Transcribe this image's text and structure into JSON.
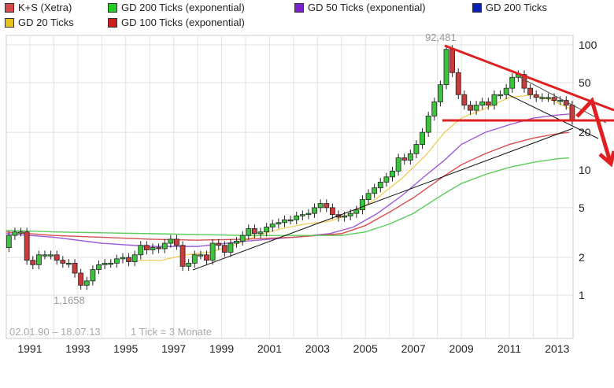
{
  "chart_data": {
    "type": "candlestick",
    "scale": "log",
    "ylim": [
      0.7,
      130
    ],
    "xlim": [
      1990.0,
      2013.65
    ],
    "grid": true,
    "legend_position": "top",
    "y_ticks": [
      "100",
      "50",
      "20",
      "10",
      "5",
      "2",
      "1"
    ],
    "y_tick_values": [
      100,
      50,
      20,
      10,
      5,
      2,
      1
    ],
    "x_ticks": [
      "1991",
      "1993",
      "1995",
      "1997",
      "1999",
      "2001",
      "2003",
      "2005",
      "2007",
      "2009",
      "2011",
      "2013"
    ],
    "legend": [
      {
        "name": "K+S (Xetra)",
        "color": "#d44b4b"
      },
      {
        "name": "GD 200 Ticks (exponential)",
        "color": "#22cc22"
      },
      {
        "name": "GD 50 Ticks (exponential)",
        "color": "#7a22cc"
      },
      {
        "name": "GD 200 Ticks",
        "color": "#0a1fb5"
      },
      {
        "name": "GD 20 Ticks",
        "color": "#e8c020"
      },
      {
        "name": "GD 100 Ticks (exponential)",
        "color": "#cc1f1f"
      }
    ],
    "period": "1 Tick = 3 Monate",
    "date_range": "02.01.90 – 18.07.13",
    "max_label": "92,481",
    "min_label": "1,1658",
    "price_quarterly_close": {
      "start": "1990 Q1",
      "values": [
        3.0,
        3.2,
        3.2,
        1.9,
        1.75,
        2.1,
        2.1,
        2.1,
        1.9,
        1.8,
        1.8,
        1.5,
        1.2,
        1.3,
        1.6,
        1.75,
        1.8,
        1.8,
        1.95,
        2.0,
        1.85,
        2.1,
        2.5,
        2.3,
        2.4,
        2.35,
        2.6,
        2.8,
        2.5,
        1.7,
        1.8,
        2.1,
        2.1,
        1.9,
        2.6,
        2.5,
        2.2,
        2.6,
        2.7,
        3.0,
        3.4,
        3.1,
        3.2,
        3.5,
        3.7,
        3.8,
        4.0,
        4.0,
        4.3,
        4.4,
        4.5,
        5.0,
        5.4,
        5.0,
        4.4,
        4.2,
        4.3,
        4.5,
        4.8,
        5.8,
        6.5,
        7.2,
        8.0,
        8.8,
        9.8,
        12.5,
        12,
        13.5,
        16,
        20,
        27,
        35,
        48,
        92,
        60,
        40,
        33,
        30,
        33,
        35,
        33,
        40,
        40,
        45,
        55,
        58,
        45,
        40,
        38,
        38,
        38,
        36,
        36,
        33,
        25
      ],
      "open_first": 2.4
    },
    "moving_averages": [
      {
        "name": "GD 20 Ticks",
        "color": "#f0d060",
        "x": [
          1995.5,
          1996.5,
          1997.5,
          1998.5,
          1999.5,
          2000.5,
          2001.5,
          2002.5,
          2003.5,
          2004.5,
          2005.5,
          2006.5,
          2007.5,
          2008.3,
          2009,
          2010,
          2011,
          2012,
          2012.8,
          2013.5
        ],
        "y": [
          1.9,
          1.9,
          2.1,
          2.2,
          2.5,
          3.0,
          3.4,
          3.7,
          3.9,
          4.5,
          6.0,
          8.5,
          13,
          20,
          26,
          31,
          38,
          40,
          36,
          31
        ]
      },
      {
        "name": "GD 50 Ticks (exponential)",
        "color": "#9b5bd6",
        "x": [
          1990,
          1992,
          1994,
          1996,
          1998,
          2000,
          2002,
          2003.5,
          2004.5,
          2005.5,
          2006.5,
          2007.5,
          2008.3,
          2009,
          2010,
          2011,
          2012,
          2013,
          2013.5
        ],
        "y": [
          3.1,
          2.9,
          2.6,
          2.45,
          2.45,
          2.7,
          2.9,
          3.1,
          3.5,
          4.5,
          6.2,
          9,
          12,
          16,
          20,
          23,
          26,
          27.5,
          28
        ]
      },
      {
        "name": "GD 100 Ticks (exponential)",
        "color": "#d85050",
        "x": [
          1990,
          1992,
          1994,
          1996,
          1998,
          2000,
          2002,
          2004,
          2005,
          2006,
          2007,
          2008.3,
          2009,
          2010,
          2011,
          2012,
          2013,
          2013.5
        ],
        "y": [
          3.2,
          3.0,
          2.9,
          2.8,
          2.75,
          2.8,
          2.9,
          3.1,
          3.6,
          4.6,
          6,
          9,
          11,
          13.5,
          16,
          18,
          19.5,
          20
        ]
      },
      {
        "name": "GD 200 Ticks (exponential)",
        "color": "#5ccc5c",
        "x": [
          1990,
          1992,
          1994,
          1996,
          1998,
          2000,
          2002,
          2004,
          2005,
          2006,
          2007,
          2008.3,
          2009,
          2010,
          2011,
          2012,
          2013,
          2013.5
        ],
        "y": [
          3.3,
          3.2,
          3.15,
          3.1,
          3.05,
          3.0,
          3.0,
          3.0,
          3.2,
          3.7,
          4.5,
          6.5,
          7.8,
          9.2,
          10.5,
          11.5,
          12.3,
          12.5
        ]
      }
    ]
  }
}
